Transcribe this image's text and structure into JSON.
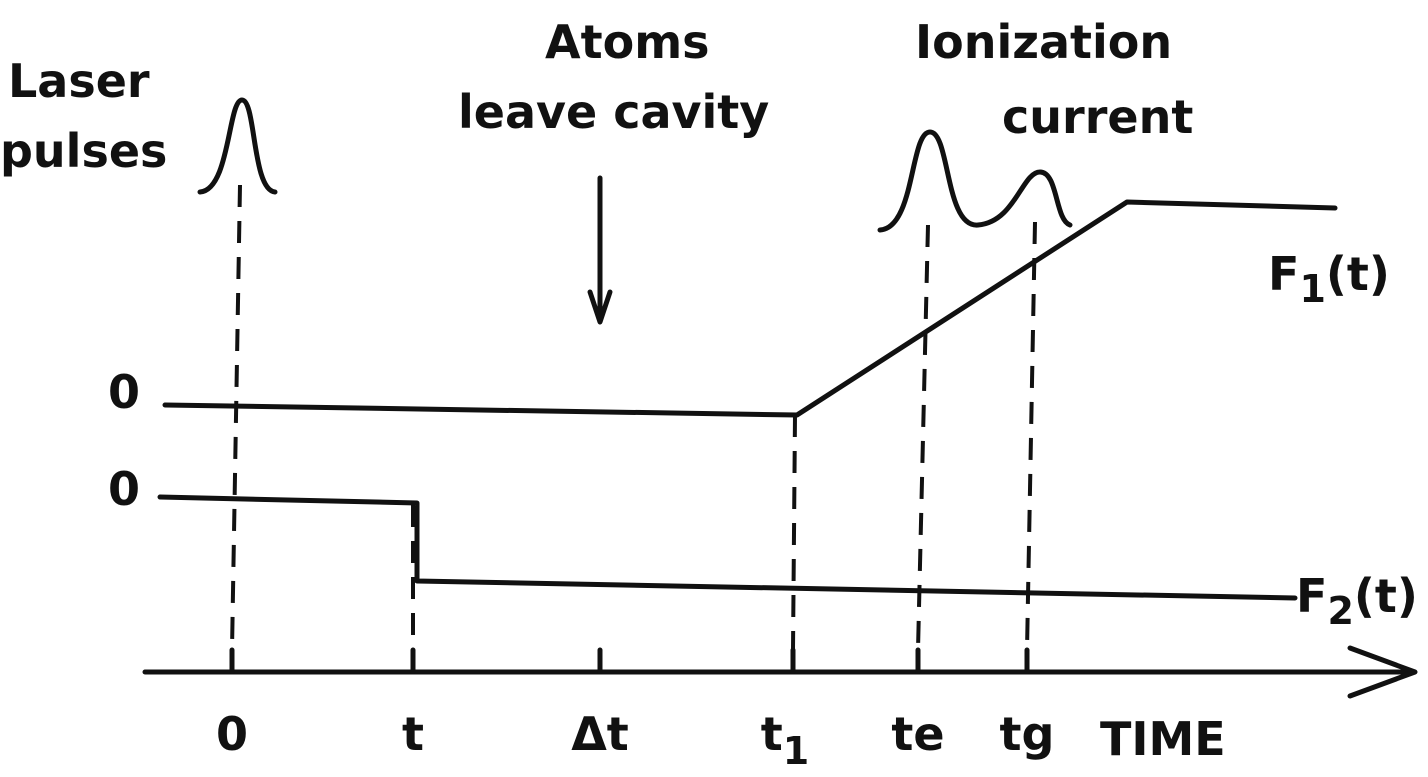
{
  "labels": {
    "laser": [
      "Laser",
      "pulses"
    ],
    "atoms": [
      "Atoms",
      "leave cavity"
    ],
    "ionization": [
      "Ionization",
      "current"
    ],
    "f1": {
      "base": "F",
      "sub": "1",
      "rest": "(t)"
    },
    "f2": {
      "base": "F",
      "sub": "2",
      "rest": "(t)"
    },
    "zero_f1": "0",
    "zero_f2": "0"
  },
  "axis": {
    "ticks": [
      "0",
      "t",
      "Δt",
      {
        "base": "t",
        "sub": "1"
      },
      "te",
      "tg"
    ],
    "title": "TIME"
  }
}
